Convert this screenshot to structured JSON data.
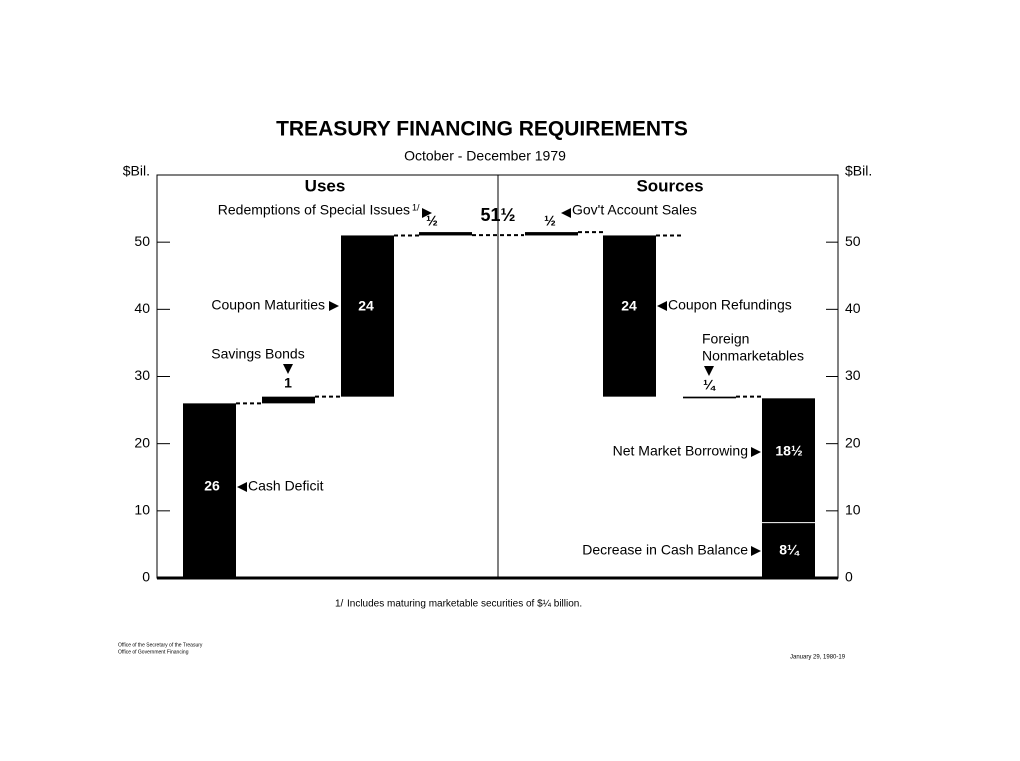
{
  "chart_data": {
    "type": "waterfall",
    "title": "TREASURY FINANCING REQUIREMENTS",
    "subtitle": "October - December 1979",
    "y_label": "$Bil.",
    "ylim": [
      0,
      60
    ],
    "yticks": [
      0,
      10,
      20,
      30,
      40,
      50
    ],
    "total": 51.5,
    "total_label": "51½",
    "color": "#000000",
    "panels": [
      {
        "name": "Uses",
        "items": [
          {
            "label": "Cash Deficit",
            "value": 26,
            "value_label": "26"
          },
          {
            "label": "Savings Bonds",
            "value": 1,
            "value_label": "1"
          },
          {
            "label": "Coupon Maturities",
            "value": 24,
            "value_label": "24"
          },
          {
            "label": "Redemptions of Special Issues",
            "note_ref": "1/",
            "value": 0.5,
            "value_label": "½"
          }
        ]
      },
      {
        "name": "Sources",
        "items": [
          {
            "label": "Decrease in Cash Balance",
            "value": 8.25,
            "value_label": "8¼"
          },
          {
            "label": "Net Market Borrowing",
            "value": 18.5,
            "value_label": "18½"
          },
          {
            "label": [
              "Foreign",
              "Nonmarketables"
            ],
            "value": 0.25,
            "value_label": "¼"
          },
          {
            "label": "Coupon Refundings",
            "value": 24,
            "value_label": "24"
          },
          {
            "label": "Gov't Account Sales",
            "value": 0.5,
            "value_label": "½"
          }
        ]
      }
    ],
    "footnote": {
      "marker": "1/",
      "text": "Includes maturing marketable securities of $¼ billion."
    }
  },
  "footer": {
    "left": [
      "Office of the Secretary of the Treasury",
      "Office of Government Financing"
    ],
    "right": "January 29, 1980-19"
  }
}
